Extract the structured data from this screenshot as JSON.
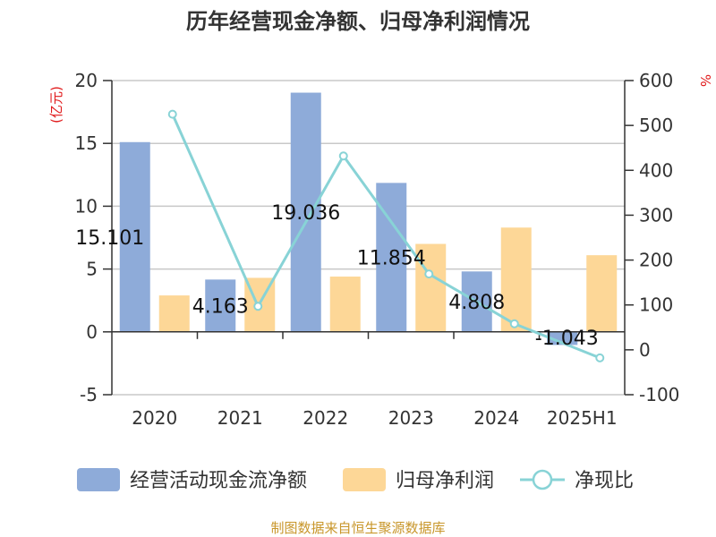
{
  "title": "历年经营现金净额、归母净利润情况",
  "source": "制图数据来自恒生聚源数据库",
  "colors": {
    "cash_flow": "#8eabd9",
    "net_profit": "#fdd797",
    "ratio": "#88d3d6",
    "axis": "#333333",
    "grid": "#c8c8c8",
    "unit": "#e0191a",
    "source": "#c8962a"
  },
  "chart_data": {
    "type": "bar",
    "title": "历年经营现金净额、归母净利润情况",
    "categories": [
      "2020",
      "2021",
      "2022",
      "2023",
      "2024",
      "2025H1"
    ],
    "series": [
      {
        "name": "经营活动现金流净额",
        "type": "bar",
        "axis": "left",
        "values": [
          15.101,
          4.163,
          19.036,
          11.854,
          4.808,
          -1.043
        ],
        "labels": [
          "15.101",
          "4.163",
          "19.036",
          "11.854",
          "4.808",
          "-1.043"
        ]
      },
      {
        "name": "归母净利润",
        "type": "bar",
        "axis": "left",
        "values": [
          2.9,
          4.3,
          4.4,
          7.0,
          8.3,
          6.1
        ]
      },
      {
        "name": "净现比",
        "type": "line",
        "axis": "right",
        "values": [
          525,
          97,
          432,
          169,
          58,
          -18
        ]
      }
    ],
    "left_axis": {
      "unit": "(亿元)",
      "min": -5,
      "max": 20,
      "ticks": [
        -5,
        0,
        5,
        10,
        15,
        20
      ]
    },
    "right_axis": {
      "unit": "%",
      "min": -100,
      "max": 600,
      "ticks": [
        -100,
        0,
        100,
        200,
        300,
        400,
        500,
        600
      ]
    },
    "grid": true,
    "legend_position": "bottom"
  }
}
